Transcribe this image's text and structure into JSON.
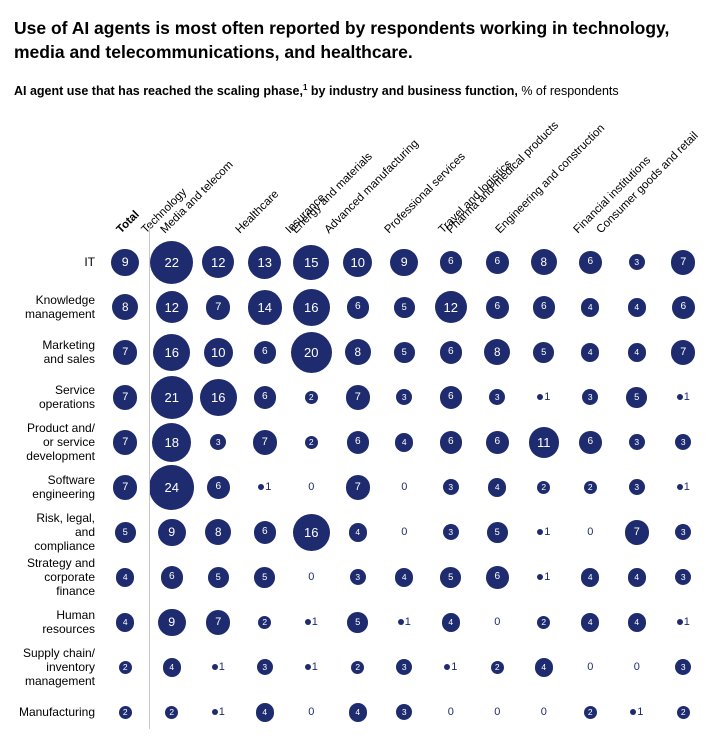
{
  "title": "Use of AI agents is most often reported by respondents working in technology, media and telecommunications, and healthcare.",
  "subtitle": {
    "bold_before_sup": "AI agent use that has reached the scaling phase,",
    "sup": "1",
    "bold_after_sup": " by industry and business function,",
    "normal": " % of respondents"
  },
  "colors": {
    "bubble": "#1e2c6f",
    "separator": "#c9c9c9"
  },
  "chart_data": {
    "type": "bubble-matrix",
    "unit": "% of respondents",
    "value_notes": "values of 1 drawn as small dot with adjacent numeral; values of 0 drawn as plain text; bubble area scales with value",
    "columns": [
      "Total",
      "Technology",
      "Media and telecom",
      "Healthcare",
      "Insurance",
      "Energy and materials",
      "Advanced manufacturing",
      "Professional services",
      "Travel and logistics",
      "Pharma and medical products",
      "Engineering and construction",
      "Financial institutions",
      "Consumer goods and retail"
    ],
    "rows": [
      {
        "label": "IT",
        "values": [
          9,
          22,
          12,
          13,
          15,
          10,
          9,
          6,
          6,
          8,
          6,
          3,
          7
        ]
      },
      {
        "label": "Knowledge\nmanagement",
        "values": [
          8,
          12,
          7,
          14,
          16,
          6,
          5,
          12,
          6,
          6,
          4,
          4,
          6
        ]
      },
      {
        "label": "Marketing\nand sales",
        "values": [
          7,
          16,
          10,
          6,
          20,
          8,
          5,
          6,
          8,
          5,
          4,
          4,
          7
        ]
      },
      {
        "label": "Service\noperations",
        "values": [
          7,
          21,
          16,
          6,
          2,
          7,
          3,
          6,
          3,
          1,
          3,
          5,
          1
        ]
      },
      {
        "label": "Product and/\nor service\ndevelopment",
        "values": [
          7,
          18,
          3,
          7,
          2,
          6,
          4,
          6,
          6,
          11,
          6,
          3,
          3
        ]
      },
      {
        "label": "Software\nengineering",
        "values": [
          7,
          24,
          6,
          1,
          0,
          7,
          0,
          3,
          4,
          2,
          2,
          3,
          1
        ]
      },
      {
        "label": "Risk, legal,\nand compliance",
        "values": [
          5,
          9,
          8,
          6,
          16,
          4,
          0,
          3,
          5,
          1,
          0,
          7,
          3
        ]
      },
      {
        "label": "Strategy and\ncorporate finance",
        "values": [
          4,
          6,
          5,
          5,
          0,
          3,
          4,
          5,
          6,
          1,
          4,
          4,
          3
        ]
      },
      {
        "label": "Human\nresources",
        "values": [
          4,
          9,
          7,
          2,
          1,
          5,
          1,
          4,
          0,
          2,
          4,
          4,
          1
        ]
      },
      {
        "label": "Supply chain/\ninventory\nmanagement",
        "values": [
          2,
          4,
          1,
          3,
          1,
          2,
          3,
          1,
          2,
          4,
          0,
          0,
          3
        ]
      },
      {
        "label": "Manufacturing",
        "values": [
          2,
          2,
          1,
          4,
          0,
          4,
          3,
          0,
          0,
          0,
          2,
          1,
          2
        ]
      }
    ]
  }
}
